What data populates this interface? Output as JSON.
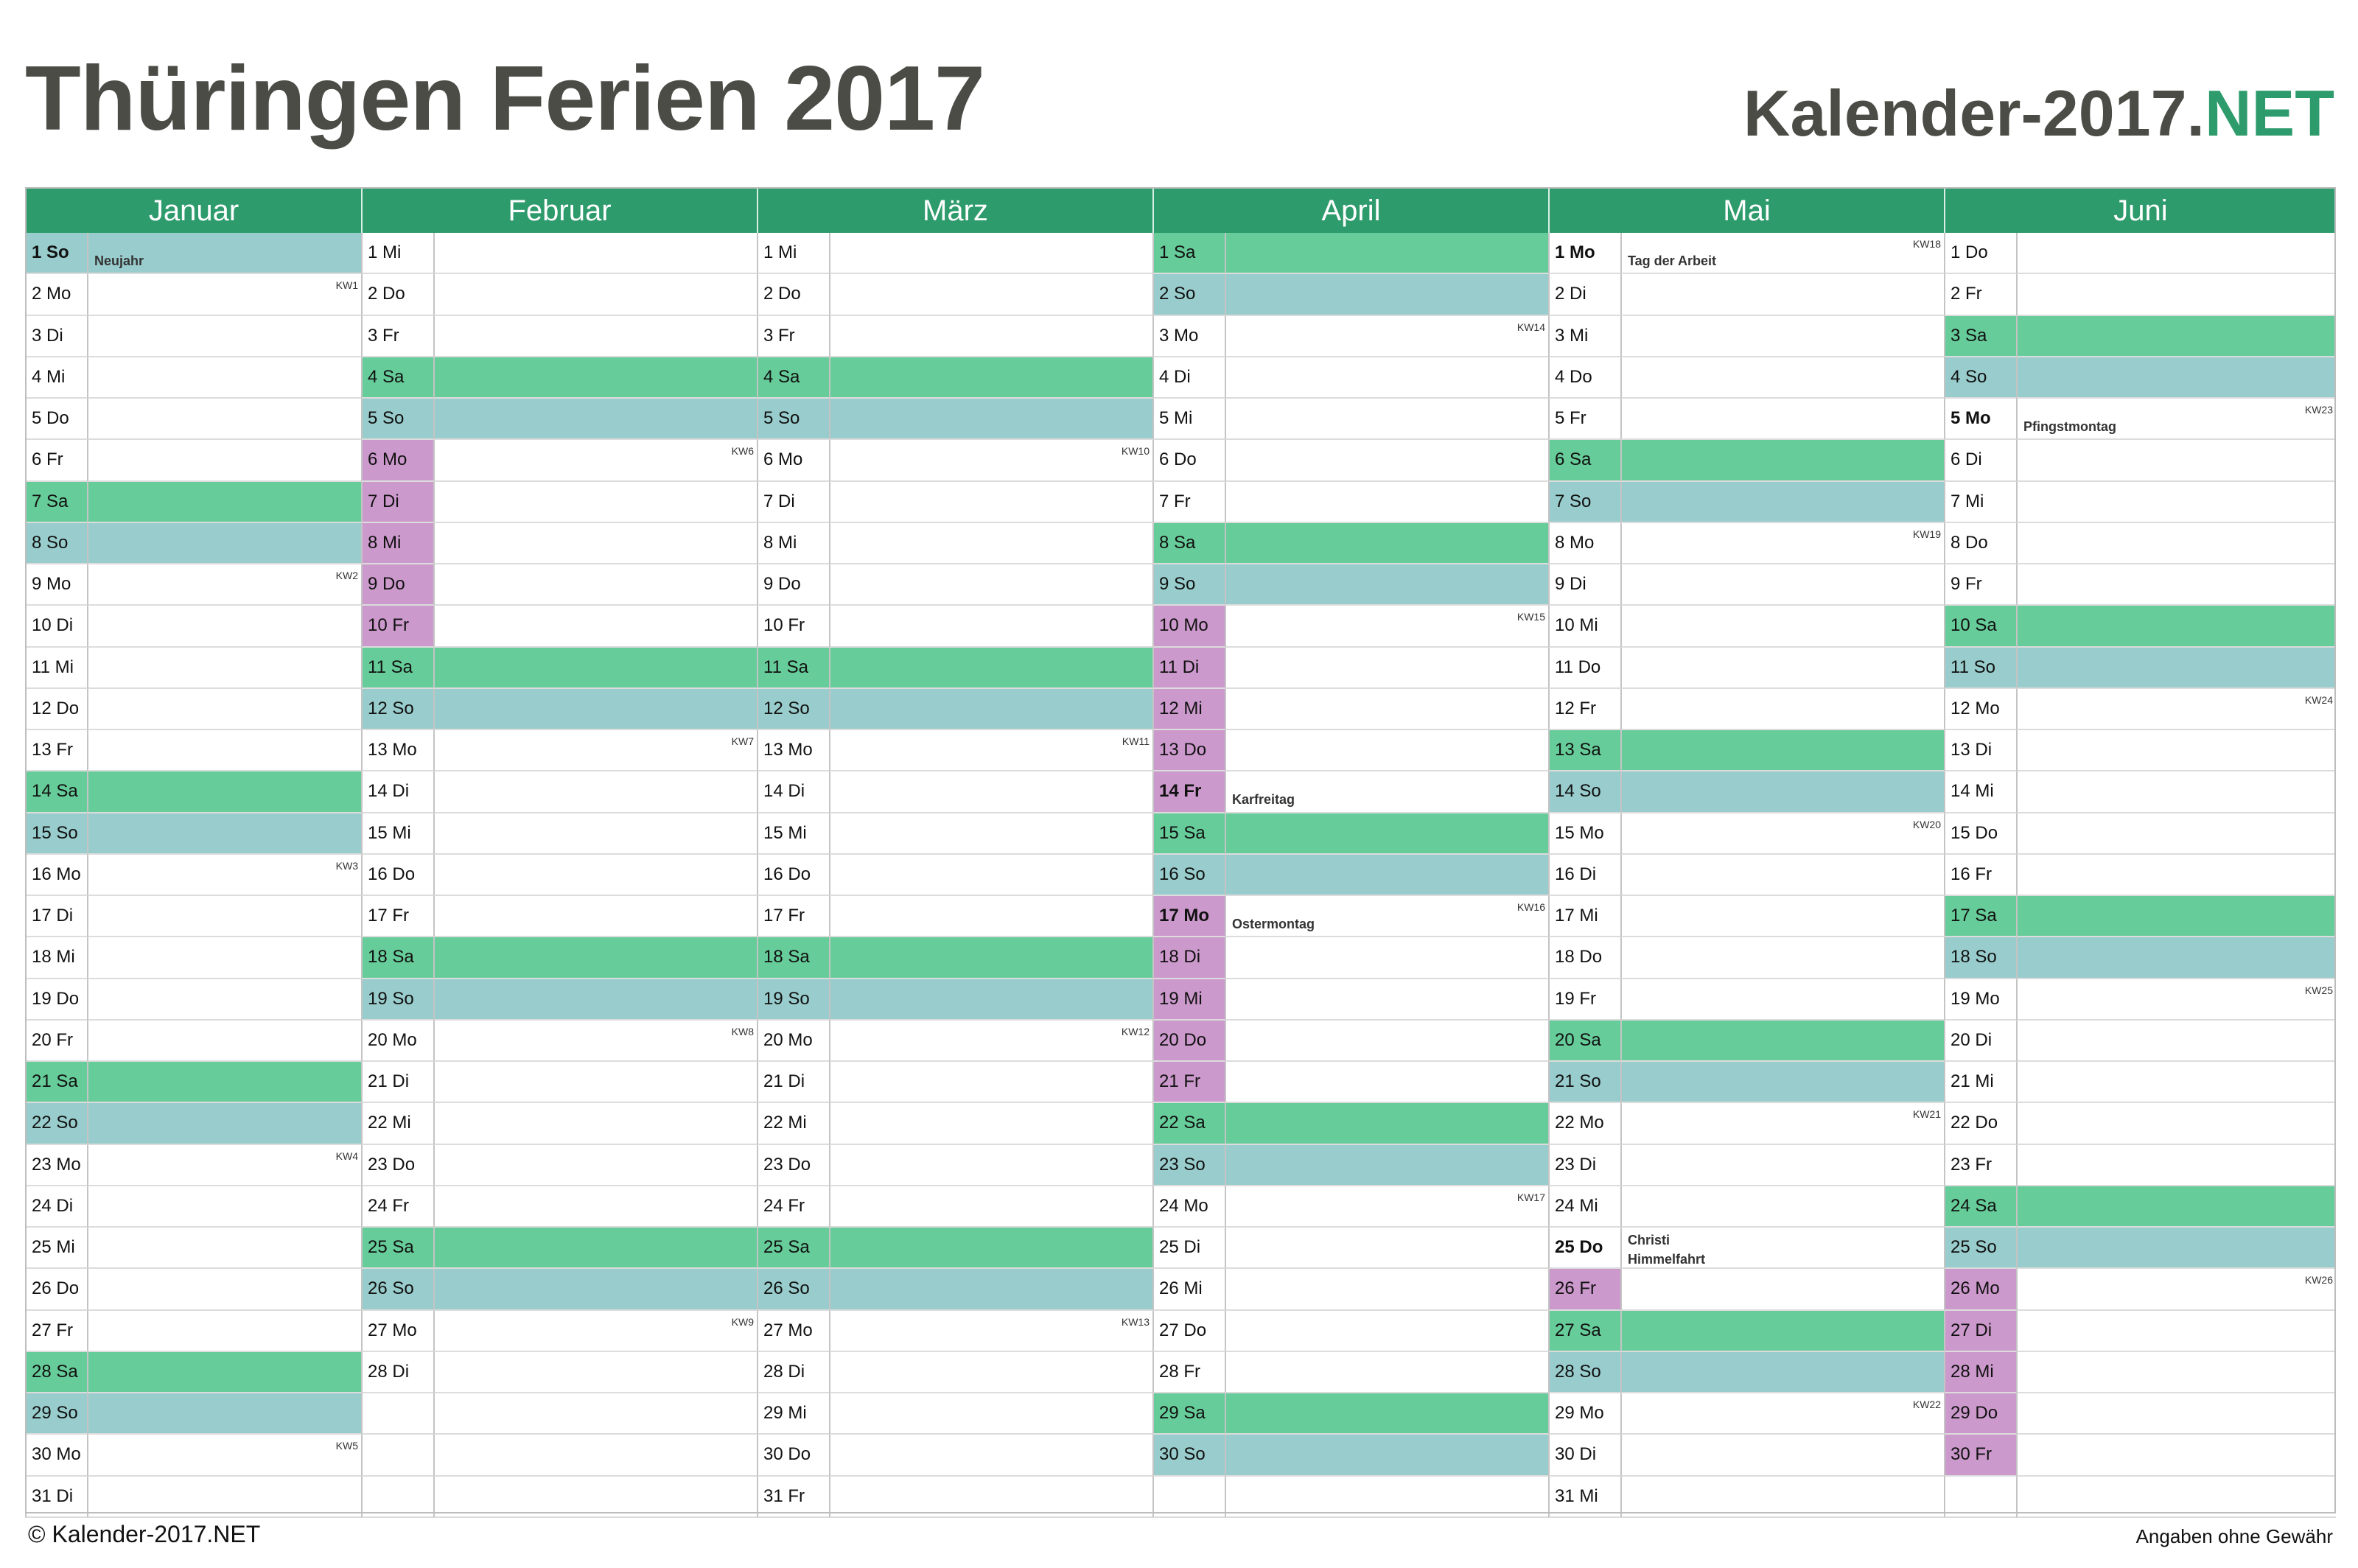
{
  "title": "Thüringen Ferien 2017",
  "brand": {
    "main": "Kalender-2017.",
    "accent": "NET"
  },
  "footer": {
    "copyright": "© Kalender-2017.NET",
    "disclaimer": "Angaben ohne Gewähr"
  },
  "colors": {
    "header": "#2e9b6c",
    "saturday": "#66cc99",
    "sunday": "#99cccc",
    "vacation": "#cc99cc",
    "brand_accent": "#2e9b6c"
  },
  "months": [
    {
      "name": "Januar",
      "days": [
        {
          "d": "1 So",
          "t": "sun",
          "label": "Neujahr",
          "hol": true
        },
        {
          "d": "2 Mo",
          "kw": "KW1"
        },
        {
          "d": "3 Di"
        },
        {
          "d": "4 Mi"
        },
        {
          "d": "5 Do"
        },
        {
          "d": "6 Fr"
        },
        {
          "d": "7 Sa",
          "t": "sat"
        },
        {
          "d": "8 So",
          "t": "sun"
        },
        {
          "d": "9 Mo",
          "kw": "KW2"
        },
        {
          "d": "10 Di"
        },
        {
          "d": "11 Mi"
        },
        {
          "d": "12 Do"
        },
        {
          "d": "13 Fr"
        },
        {
          "d": "14 Sa",
          "t": "sat"
        },
        {
          "d": "15 So",
          "t": "sun"
        },
        {
          "d": "16 Mo",
          "kw": "KW3"
        },
        {
          "d": "17 Di"
        },
        {
          "d": "18 Mi"
        },
        {
          "d": "19 Do"
        },
        {
          "d": "20 Fr"
        },
        {
          "d": "21 Sa",
          "t": "sat"
        },
        {
          "d": "22 So",
          "t": "sun"
        },
        {
          "d": "23 Mo",
          "kw": "KW4"
        },
        {
          "d": "24 Di"
        },
        {
          "d": "25 Mi"
        },
        {
          "d": "26 Do"
        },
        {
          "d": "27 Fr"
        },
        {
          "d": "28 Sa",
          "t": "sat"
        },
        {
          "d": "29 So",
          "t": "sun"
        },
        {
          "d": "30 Mo",
          "kw": "KW5"
        },
        {
          "d": "31 Di"
        }
      ]
    },
    {
      "name": "Februar",
      "days": [
        {
          "d": "1 Mi"
        },
        {
          "d": "2 Do"
        },
        {
          "d": "3 Fr"
        },
        {
          "d": "4 Sa",
          "t": "sat"
        },
        {
          "d": "5 So",
          "t": "sun"
        },
        {
          "d": "6 Mo",
          "t": "vac",
          "kw": "KW6"
        },
        {
          "d": "7 Di",
          "t": "vac"
        },
        {
          "d": "8 Mi",
          "t": "vac"
        },
        {
          "d": "9 Do",
          "t": "vac"
        },
        {
          "d": "10 Fr",
          "t": "vac"
        },
        {
          "d": "11 Sa",
          "t": "sat"
        },
        {
          "d": "12 So",
          "t": "sun"
        },
        {
          "d": "13 Mo",
          "kw": "KW7"
        },
        {
          "d": "14 Di"
        },
        {
          "d": "15 Mi"
        },
        {
          "d": "16 Do"
        },
        {
          "d": "17 Fr"
        },
        {
          "d": "18 Sa",
          "t": "sat"
        },
        {
          "d": "19 So",
          "t": "sun"
        },
        {
          "d": "20 Mo",
          "kw": "KW8"
        },
        {
          "d": "21 Di"
        },
        {
          "d": "22 Mi"
        },
        {
          "d": "23 Do"
        },
        {
          "d": "24 Fr"
        },
        {
          "d": "25 Sa",
          "t": "sat"
        },
        {
          "d": "26 So",
          "t": "sun"
        },
        {
          "d": "27 Mo",
          "kw": "KW9"
        },
        {
          "d": "28 Di"
        }
      ]
    },
    {
      "name": "März",
      "days": [
        {
          "d": "1 Mi"
        },
        {
          "d": "2 Do"
        },
        {
          "d": "3 Fr"
        },
        {
          "d": "4 Sa",
          "t": "sat"
        },
        {
          "d": "5 So",
          "t": "sun"
        },
        {
          "d": "6 Mo",
          "kw": "KW10"
        },
        {
          "d": "7 Di"
        },
        {
          "d": "8 Mi"
        },
        {
          "d": "9 Do"
        },
        {
          "d": "10 Fr"
        },
        {
          "d": "11 Sa",
          "t": "sat"
        },
        {
          "d": "12 So",
          "t": "sun"
        },
        {
          "d": "13 Mo",
          "kw": "KW11"
        },
        {
          "d": "14 Di"
        },
        {
          "d": "15 Mi"
        },
        {
          "d": "16 Do"
        },
        {
          "d": "17 Fr"
        },
        {
          "d": "18 Sa",
          "t": "sat"
        },
        {
          "d": "19 So",
          "t": "sun"
        },
        {
          "d": "20 Mo",
          "kw": "KW12"
        },
        {
          "d": "21 Di"
        },
        {
          "d": "22 Mi"
        },
        {
          "d": "23 Do"
        },
        {
          "d": "24 Fr"
        },
        {
          "d": "25 Sa",
          "t": "sat"
        },
        {
          "d": "26 So",
          "t": "sun"
        },
        {
          "d": "27 Mo",
          "kw": "KW13"
        },
        {
          "d": "28 Di"
        },
        {
          "d": "29 Mi"
        },
        {
          "d": "30 Do"
        },
        {
          "d": "31 Fr"
        }
      ]
    },
    {
      "name": "April",
      "days": [
        {
          "d": "1 Sa",
          "t": "sat"
        },
        {
          "d": "2 So",
          "t": "sun"
        },
        {
          "d": "3 Mo",
          "kw": "KW14"
        },
        {
          "d": "4 Di"
        },
        {
          "d": "5 Mi"
        },
        {
          "d": "6 Do"
        },
        {
          "d": "7 Fr"
        },
        {
          "d": "8 Sa",
          "t": "sat"
        },
        {
          "d": "9 So",
          "t": "sun"
        },
        {
          "d": "10 Mo",
          "t": "vac",
          "kw": "KW15"
        },
        {
          "d": "11 Di",
          "t": "vac"
        },
        {
          "d": "12 Mi",
          "t": "vac"
        },
        {
          "d": "13 Do",
          "t": "vac"
        },
        {
          "d": "14 Fr",
          "t": "vac",
          "label": "Karfreitag",
          "hol": true
        },
        {
          "d": "15 Sa",
          "t": "sat"
        },
        {
          "d": "16 So",
          "t": "sun"
        },
        {
          "d": "17 Mo",
          "t": "vac",
          "label": "Ostermontag",
          "hol": true,
          "kw": "KW16"
        },
        {
          "d": "18 Di",
          "t": "vac"
        },
        {
          "d": "19 Mi",
          "t": "vac"
        },
        {
          "d": "20 Do",
          "t": "vac"
        },
        {
          "d": "21 Fr",
          "t": "vac"
        },
        {
          "d": "22 Sa",
          "t": "sat"
        },
        {
          "d": "23 So",
          "t": "sun"
        },
        {
          "d": "24 Mo",
          "kw": "KW17"
        },
        {
          "d": "25 Di"
        },
        {
          "d": "26 Mi"
        },
        {
          "d": "27 Do"
        },
        {
          "d": "28 Fr"
        },
        {
          "d": "29 Sa",
          "t": "sat"
        },
        {
          "d": "30 So",
          "t": "sun"
        }
      ]
    },
    {
      "name": "Mai",
      "days": [
        {
          "d": "1 Mo",
          "label": "Tag der Arbeit",
          "hol": true,
          "kw": "KW18"
        },
        {
          "d": "2 Di"
        },
        {
          "d": "3 Mi"
        },
        {
          "d": "4 Do"
        },
        {
          "d": "5 Fr"
        },
        {
          "d": "6 Sa",
          "t": "sat"
        },
        {
          "d": "7 So",
          "t": "sun"
        },
        {
          "d": "8 Mo",
          "kw": "KW19"
        },
        {
          "d": "9 Di"
        },
        {
          "d": "10 Mi"
        },
        {
          "d": "11 Do"
        },
        {
          "d": "12 Fr"
        },
        {
          "d": "13 Sa",
          "t": "sat"
        },
        {
          "d": "14 So",
          "t": "sun"
        },
        {
          "d": "15 Mo",
          "kw": "KW20"
        },
        {
          "d": "16 Di"
        },
        {
          "d": "17 Mi"
        },
        {
          "d": "18 Do"
        },
        {
          "d": "19 Fr"
        },
        {
          "d": "20 Sa",
          "t": "sat"
        },
        {
          "d": "21 So",
          "t": "sun"
        },
        {
          "d": "22 Mo",
          "kw": "KW21"
        },
        {
          "d": "23 Di"
        },
        {
          "d": "24 Mi"
        },
        {
          "d": "25 Do",
          "label": "Christi Himmelfahrt",
          "hol": true
        },
        {
          "d": "26 Fr",
          "t": "vac"
        },
        {
          "d": "27 Sa",
          "t": "sat"
        },
        {
          "d": "28 So",
          "t": "sun"
        },
        {
          "d": "29 Mo",
          "kw": "KW22"
        },
        {
          "d": "30 Di"
        },
        {
          "d": "31 Mi"
        }
      ]
    },
    {
      "name": "Juni",
      "days": [
        {
          "d": "1 Do"
        },
        {
          "d": "2 Fr"
        },
        {
          "d": "3 Sa",
          "t": "sat"
        },
        {
          "d": "4 So",
          "t": "sun"
        },
        {
          "d": "5 Mo",
          "label": "Pfingstmontag",
          "hol": true,
          "kw": "KW23"
        },
        {
          "d": "6 Di"
        },
        {
          "d": "7 Mi"
        },
        {
          "d": "8 Do"
        },
        {
          "d": "9 Fr"
        },
        {
          "d": "10 Sa",
          "t": "sat"
        },
        {
          "d": "11 So",
          "t": "sun"
        },
        {
          "d": "12 Mo",
          "kw": "KW24"
        },
        {
          "d": "13 Di"
        },
        {
          "d": "14 Mi"
        },
        {
          "d": "15 Do"
        },
        {
          "d": "16 Fr"
        },
        {
          "d": "17 Sa",
          "t": "sat"
        },
        {
          "d": "18 So",
          "t": "sun"
        },
        {
          "d": "19 Mo",
          "kw": "KW25"
        },
        {
          "d": "20 Di"
        },
        {
          "d": "21 Mi"
        },
        {
          "d": "22 Do"
        },
        {
          "d": "23 Fr"
        },
        {
          "d": "24 Sa",
          "t": "sat"
        },
        {
          "d": "25 So",
          "t": "sun"
        },
        {
          "d": "26 Mo",
          "t": "vac",
          "kw": "KW26"
        },
        {
          "d": "27 Di",
          "t": "vac"
        },
        {
          "d": "28 Mi",
          "t": "vac"
        },
        {
          "d": "29 Do",
          "t": "vac"
        },
        {
          "d": "30 Fr",
          "t": "vac"
        }
      ]
    }
  ]
}
